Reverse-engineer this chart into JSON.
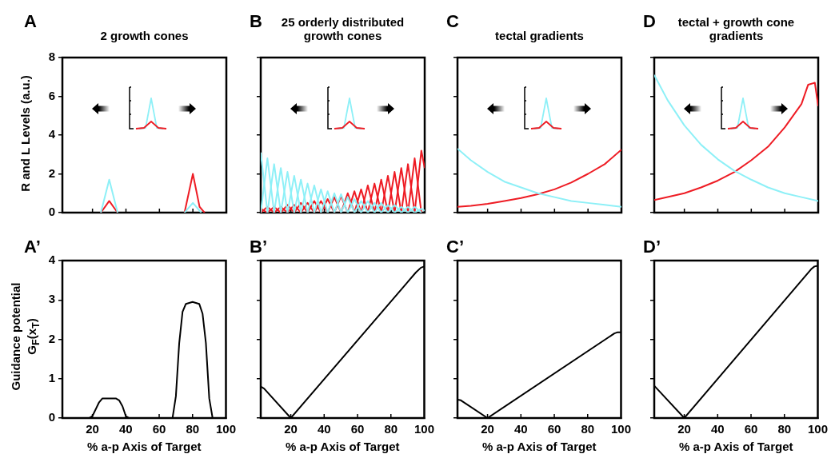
{
  "chart_data": [
    {
      "type": "line",
      "title": "2 growth cones",
      "ylabel": "R and L Levels (a.u.)",
      "annotations": [
        "A"
      ],
      "xlim": [
        2,
        100
      ],
      "xticks": [
        {
          "value": 20,
          "label": null
        },
        {
          "value": 40,
          "label": null
        },
        {
          "value": 60,
          "label": null
        },
        {
          "value": 80,
          "label": null
        }
      ],
      "ylim": [
        0,
        8
      ],
      "yticks": [
        0,
        2,
        4,
        6,
        8
      ],
      "tick_labels": "y",
      "series": [
        {
          "color": "#8ef0f7",
          "x": [
            25,
            30,
            35,
            55,
            75,
            80,
            85
          ],
          "values": [
            0,
            1.7,
            0,
            null,
            0,
            0.5,
            0
          ]
        },
        {
          "color": "#ee1c24",
          "x": [
            25,
            30,
            35,
            55,
            75,
            80,
            84,
            87
          ],
          "values": [
            0,
            0.6,
            0,
            null,
            0,
            2,
            0.3,
            0
          ]
        }
      ]
    },
    {
      "type": "line",
      "title": "25 orderly distributed growth cones",
      "annotations": [
        "B"
      ],
      "xlim": [
        2,
        100
      ],
      "xticks": [
        {
          "value": 20,
          "label": null
        },
        {
          "value": 40,
          "label": null
        },
        {
          "value": 60,
          "label": null
        },
        {
          "value": 80,
          "label": null
        }
      ],
      "ylim": [
        0,
        8
      ],
      "yticks": [
        0,
        2,
        4,
        6,
        8
      ],
      "tick_labels": false,
      "series": [
        {
          "color": "#8ef0f7",
          "x": [
            2,
            6
          ],
          "values": [
            3.1,
            0
          ]
        },
        {
          "color": "#8ef0f7",
          "x": [
            2,
            6,
            10
          ],
          "values": [
            0,
            2.8,
            0
          ]
        },
        {
          "color": "#8ef0f7",
          "x": [
            6,
            10,
            14
          ],
          "values": [
            0,
            2.5,
            0
          ]
        },
        {
          "color": "#8ef0f7",
          "x": [
            10,
            14,
            18
          ],
          "values": [
            0,
            2.3,
            0
          ]
        },
        {
          "color": "#8ef0f7",
          "x": [
            14,
            18,
            22
          ],
          "values": [
            0,
            2.1,
            0
          ]
        },
        {
          "color": "#8ef0f7",
          "x": [
            18,
            22,
            26
          ],
          "values": [
            0,
            1.9,
            0
          ]
        },
        {
          "color": "#8ef0f7",
          "x": [
            22,
            26,
            30
          ],
          "values": [
            0,
            1.7,
            0
          ]
        },
        {
          "color": "#8ef0f7",
          "x": [
            26,
            30,
            34
          ],
          "values": [
            0,
            1.5,
            0
          ]
        },
        {
          "color": "#8ef0f7",
          "x": [
            30,
            34,
            38
          ],
          "values": [
            0,
            1.4,
            0
          ]
        },
        {
          "color": "#8ef0f7",
          "x": [
            34,
            38,
            42
          ],
          "values": [
            0,
            1.2,
            0
          ]
        },
        {
          "color": "#8ef0f7",
          "x": [
            38,
            42,
            46
          ],
          "values": [
            0,
            1.1,
            0
          ]
        },
        {
          "color": "#8ef0f7",
          "x": [
            42,
            46,
            50
          ],
          "values": [
            0,
            1,
            0
          ]
        },
        {
          "color": "#8ef0f7",
          "x": [
            46,
            50,
            54
          ],
          "values": [
            0,
            0.95,
            0
          ]
        },
        {
          "color": "#8ef0f7",
          "x": [
            50,
            54,
            58
          ],
          "values": [
            0,
            0.8,
            0
          ]
        },
        {
          "color": "#8ef0f7",
          "x": [
            54,
            58,
            62
          ],
          "values": [
            0,
            0.7,
            0
          ]
        },
        {
          "color": "#8ef0f7",
          "x": [
            58,
            62,
            66
          ],
          "values": [
            0,
            0.6,
            0
          ]
        },
        {
          "color": "#8ef0f7",
          "x": [
            62,
            66,
            70
          ],
          "values": [
            0,
            0.6,
            0
          ]
        },
        {
          "color": "#8ef0f7",
          "x": [
            66,
            70,
            74
          ],
          "values": [
            0,
            0.5,
            0
          ]
        },
        {
          "color": "#8ef0f7",
          "x": [
            70,
            74,
            78
          ],
          "values": [
            0,
            0.5,
            0
          ]
        },
        {
          "color": "#8ef0f7",
          "x": [
            74,
            78,
            82
          ],
          "values": [
            0,
            0.4,
            0
          ]
        },
        {
          "color": "#8ef0f7",
          "x": [
            78,
            82,
            86
          ],
          "values": [
            0,
            0.4,
            0
          ]
        },
        {
          "color": "#8ef0f7",
          "x": [
            82,
            86,
            90
          ],
          "values": [
            0,
            0.3,
            0
          ]
        },
        {
          "color": "#8ef0f7",
          "x": [
            86,
            90,
            94
          ],
          "values": [
            0,
            0.3,
            0
          ]
        },
        {
          "color": "#8ef0f7",
          "x": [
            90,
            94,
            98
          ],
          "values": [
            0,
            0.3,
            0
          ]
        },
        {
          "color": "#8ef0f7",
          "x": [
            94,
            98,
            100
          ],
          "values": [
            0,
            0.2,
            0.1
          ]
        },
        {
          "color": "#ee1c24",
          "x": [
            2,
            6
          ],
          "values": [
            0.2,
            0
          ]
        },
        {
          "color": "#ee1c24",
          "x": [
            2,
            6,
            10
          ],
          "values": [
            0,
            0.3,
            0
          ]
        },
        {
          "color": "#ee1c24",
          "x": [
            6,
            10,
            14
          ],
          "values": [
            0,
            0.3,
            0
          ]
        },
        {
          "color": "#ee1c24",
          "x": [
            10,
            14,
            18
          ],
          "values": [
            0,
            0.3,
            0
          ]
        },
        {
          "color": "#ee1c24",
          "x": [
            14,
            18,
            22
          ],
          "values": [
            0,
            0.4,
            0
          ]
        },
        {
          "color": "#ee1c24",
          "x": [
            18,
            22,
            26
          ],
          "values": [
            0,
            0.4,
            0
          ]
        },
        {
          "color": "#ee1c24",
          "x": [
            22,
            26,
            30
          ],
          "values": [
            0,
            0.5,
            0
          ]
        },
        {
          "color": "#ee1c24",
          "x": [
            26,
            30,
            34
          ],
          "values": [
            0,
            0.5,
            0
          ]
        },
        {
          "color": "#ee1c24",
          "x": [
            30,
            34,
            38
          ],
          "values": [
            0,
            0.6,
            0
          ]
        },
        {
          "color": "#ee1c24",
          "x": [
            34,
            38,
            42
          ],
          "values": [
            0,
            0.6,
            0
          ]
        },
        {
          "color": "#ee1c24",
          "x": [
            38,
            42,
            46
          ],
          "values": [
            0,
            0.7,
            0
          ]
        },
        {
          "color": "#ee1c24",
          "x": [
            42,
            46,
            50
          ],
          "values": [
            0,
            0.8,
            0
          ]
        },
        {
          "color": "#ee1c24",
          "x": [
            46,
            50,
            54
          ],
          "values": [
            0,
            0.85,
            0
          ]
        },
        {
          "color": "#ee1c24",
          "x": [
            50,
            54,
            58
          ],
          "values": [
            0,
            1,
            0
          ]
        },
        {
          "color": "#ee1c24",
          "x": [
            54,
            58,
            62
          ],
          "values": [
            0,
            1.1,
            0
          ]
        },
        {
          "color": "#ee1c24",
          "x": [
            58,
            62,
            66
          ],
          "values": [
            0,
            1.2,
            0
          ]
        },
        {
          "color": "#ee1c24",
          "x": [
            62,
            66,
            70
          ],
          "values": [
            0,
            1.4,
            0
          ]
        },
        {
          "color": "#ee1c24",
          "x": [
            66,
            70,
            74
          ],
          "values": [
            0,
            1.5,
            0
          ]
        },
        {
          "color": "#ee1c24",
          "x": [
            70,
            74,
            78
          ],
          "values": [
            0,
            1.7,
            0
          ]
        },
        {
          "color": "#ee1c24",
          "x": [
            74,
            78,
            82
          ],
          "values": [
            0,
            1.9,
            0
          ]
        },
        {
          "color": "#ee1c24",
          "x": [
            78,
            82,
            86
          ],
          "values": [
            0,
            2.1,
            0
          ]
        },
        {
          "color": "#ee1c24",
          "x": [
            82,
            86,
            90
          ],
          "values": [
            0,
            2.3,
            0
          ]
        },
        {
          "color": "#ee1c24",
          "x": [
            86,
            90,
            94
          ],
          "values": [
            0,
            2.5,
            0
          ]
        },
        {
          "color": "#ee1c24",
          "x": [
            90,
            94,
            98
          ],
          "values": [
            0,
            2.8,
            0
          ]
        },
        {
          "color": "#ee1c24",
          "x": [
            94,
            98,
            100
          ],
          "values": [
            0,
            3.2,
            2.3
          ]
        }
      ]
    },
    {
      "type": "line",
      "title": "tectal gradients",
      "annotations": [
        "C"
      ],
      "xlim": [
        2,
        100
      ],
      "xticks": [
        {
          "value": 20,
          "label": null
        },
        {
          "value": 40,
          "label": null
        },
        {
          "value": 60,
          "label": null
        },
        {
          "value": 80,
          "label": null
        }
      ],
      "ylim": [
        0,
        8
      ],
      "yticks": [
        0,
        2,
        4,
        6,
        8
      ],
      "tick_labels": false,
      "x": [
        2,
        10,
        20,
        30,
        40,
        50,
        60,
        70,
        80,
        90,
        100
      ],
      "series": [
        {
          "color": "#8ef0f7",
          "values": [
            3.3,
            2.7,
            2.1,
            1.6,
            1.3,
            1,
            0.8,
            0.6,
            0.5,
            0.4,
            0.3
          ]
        },
        {
          "color": "#ee1c24",
          "values": [
            0.3,
            0.35,
            0.45,
            0.6,
            0.75,
            0.95,
            1.2,
            1.55,
            2,
            2.5,
            3.25
          ]
        }
      ]
    },
    {
      "type": "line",
      "title": "tectal + growth cone gradients",
      "annotations": [
        "D"
      ],
      "xlim": [
        2,
        100
      ],
      "xticks": [
        {
          "value": 20,
          "label": null
        },
        {
          "value": 40,
          "label": null
        },
        {
          "value": 60,
          "label": null
        },
        {
          "value": 80,
          "label": null
        }
      ],
      "ylim": [
        0,
        8
      ],
      "yticks": [
        0,
        2,
        4,
        6,
        8
      ],
      "tick_labels": false,
      "series": [
        {
          "color": "#8ef0f7",
          "x": [
            2,
            10,
            20,
            30,
            40,
            50,
            60,
            70,
            80,
            90,
            100
          ],
          "values": [
            7.1,
            5.8,
            4.5,
            3.5,
            2.75,
            2.15,
            1.7,
            1.3,
            1,
            0.8,
            0.6
          ]
        },
        {
          "color": "#ee1c24",
          "x": [
            2,
            10,
            20,
            30,
            40,
            50,
            60,
            70,
            80,
            90,
            94,
            98,
            100
          ],
          "values": [
            0.65,
            0.8,
            1,
            1.3,
            1.65,
            2.1,
            2.7,
            3.4,
            4.4,
            5.6,
            6.6,
            6.7,
            5.5
          ]
        }
      ]
    },
    {
      "type": "line",
      "xlabel": "% a-p Axis of Target",
      "ylabel": "Guidance potential G$_{F}$(x$_{T}$)",
      "annotations": [
        "A’"
      ],
      "xlim": [
        2,
        100
      ],
      "xticks": [
        20,
        40,
        60,
        80,
        100
      ],
      "ylim": [
        0,
        4
      ],
      "yticks": [
        0,
        1,
        2,
        3,
        4
      ],
      "series": [
        {
          "color": "#000000",
          "x": [
            2,
            18,
            20,
            24,
            26,
            34,
            36,
            38,
            40,
            42,
            68,
            70,
            72,
            74,
            76,
            80,
            84,
            86,
            88,
            90,
            92,
            100
          ],
          "values": [
            0,
            0,
            0.05,
            0.4,
            0.5,
            0.5,
            0.45,
            0.3,
            0.05,
            0,
            0,
            0.55,
            1.9,
            2.7,
            2.9,
            2.95,
            2.9,
            2.65,
            1.9,
            0.5,
            0,
            0
          ]
        }
      ]
    },
    {
      "type": "line",
      "xlabel": "% a-p Axis of Target",
      "annotations": [
        "B’"
      ],
      "xlim": [
        2,
        100
      ],
      "xticks": [
        20,
        40,
        60,
        80,
        100
      ],
      "ylim": [
        0,
        4
      ],
      "yticks": [
        0,
        1,
        2,
        3,
        4
      ],
      "tick_labels": "x",
      "series": [
        {
          "color": "#000000",
          "x": [
            2,
            4,
            20,
            95,
            98,
            100
          ],
          "values": [
            0.8,
            0.75,
            0,
            3.7,
            3.82,
            3.85
          ]
        }
      ]
    },
    {
      "type": "line",
      "xlabel": "% a-p Axis of Target",
      "annotations": [
        "C’"
      ],
      "xlim": [
        2,
        100
      ],
      "xticks": [
        20,
        40,
        60,
        80,
        100
      ],
      "ylim": [
        0,
        4
      ],
      "yticks": [
        0,
        1,
        2,
        3,
        4
      ],
      "tick_labels": "x",
      "series": [
        {
          "color": "#000000",
          "x": [
            2,
            4,
            20,
            96,
            98,
            100
          ],
          "values": [
            0.47,
            0.45,
            0,
            2.15,
            2.18,
            2.18
          ]
        }
      ]
    },
    {
      "type": "line",
      "xlabel": "% a-p Axis of Target",
      "annotations": [
        "D’"
      ],
      "xlim": [
        2,
        100
      ],
      "xticks": [
        20,
        40,
        60,
        80,
        100
      ],
      "ylim": [
        0,
        4
      ],
      "yticks": [
        0,
        1,
        2,
        3,
        4
      ],
      "tick_labels": "x",
      "series": [
        {
          "color": "#000000",
          "x": [
            2,
            20,
            96,
            98,
            100
          ],
          "values": [
            0.82,
            0,
            3.78,
            3.85,
            3.87
          ]
        }
      ]
    }
  ]
}
